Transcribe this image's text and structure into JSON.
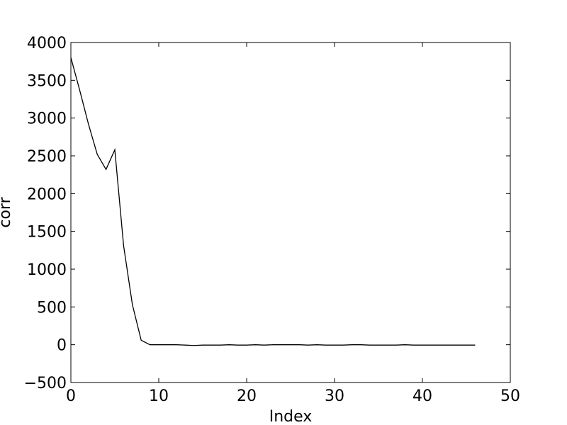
{
  "chart_data": {
    "type": "line",
    "title": "",
    "xlabel": "Index",
    "ylabel": "corr",
    "xlim": [
      0,
      50
    ],
    "ylim": [
      -500,
      4000
    ],
    "xticks": [
      0,
      10,
      20,
      30,
      40,
      50
    ],
    "yticks": [
      -500,
      0,
      500,
      1000,
      1500,
      2000,
      2500,
      3000,
      3500,
      4000
    ],
    "xtick_labels": [
      "0",
      "10",
      "20",
      "30",
      "40",
      "50"
    ],
    "ytick_labels": [
      "−500",
      "0",
      "500",
      "1000",
      "1500",
      "2000",
      "2500",
      "3000",
      "3500",
      "4000"
    ],
    "grid": false,
    "legend": "none",
    "series": [
      {
        "color": "#000000",
        "x": [
          0,
          1,
          2,
          3,
          4,
          5,
          6,
          7,
          8,
          9,
          10,
          11,
          12,
          13,
          14,
          15,
          16,
          17,
          18,
          19,
          20,
          21,
          22,
          23,
          24,
          25,
          26,
          27,
          28,
          29,
          30,
          31,
          32,
          33,
          34,
          35,
          36,
          37,
          38,
          39,
          40,
          41,
          42,
          43,
          44,
          45,
          46
        ],
        "y": [
          3800,
          3370,
          2920,
          2520,
          2320,
          2580,
          1310,
          530,
          60,
          0,
          0,
          0,
          0,
          -5,
          -10,
          -5,
          -5,
          -5,
          0,
          -5,
          -5,
          0,
          -5,
          0,
          0,
          0,
          0,
          -5,
          0,
          -5,
          -5,
          -5,
          0,
          0,
          -5,
          -5,
          -5,
          -5,
          0,
          -5,
          -5,
          -5,
          -5,
          -5,
          -5,
          -5,
          -5
        ]
      }
    ]
  }
}
